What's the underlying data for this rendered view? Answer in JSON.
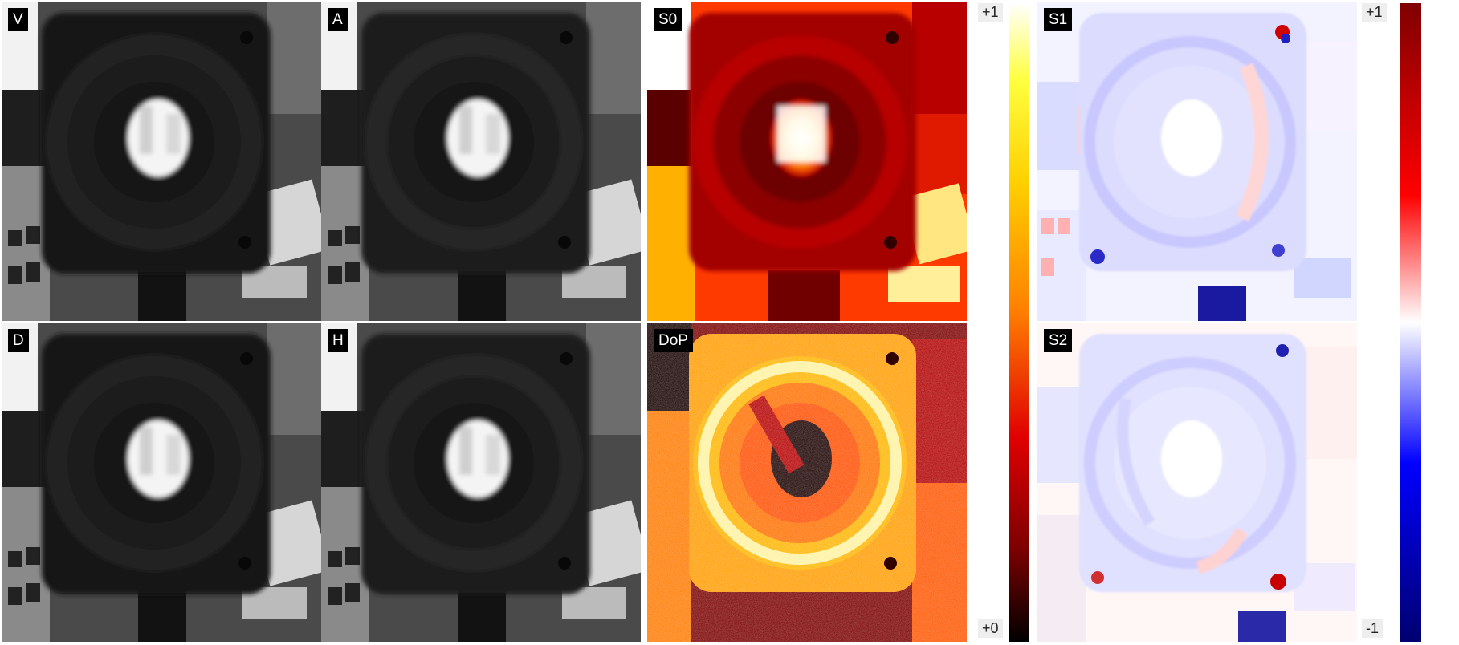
{
  "panels": {
    "v": {
      "label": "V"
    },
    "a": {
      "label": "A"
    },
    "d": {
      "label": "D"
    },
    "h": {
      "label": "H"
    },
    "s0": {
      "label": "S0"
    },
    "dop": {
      "label": "DoP"
    },
    "s1": {
      "label": "S1"
    },
    "s2": {
      "label": "S2"
    }
  },
  "colorbars": {
    "hot": {
      "max": "+1",
      "min": "+0",
      "colors": [
        "#ffffff",
        "#ffff00",
        "#ff8800",
        "#cc0000",
        "#000000"
      ]
    },
    "diverging": {
      "max": "+1",
      "min": "-1",
      "colors": [
        "#7a0000",
        "#ff0000",
        "#ffffff",
        "#0000ff",
        "#000066"
      ]
    }
  }
}
